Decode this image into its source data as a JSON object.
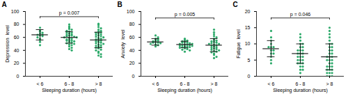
{
  "chart_data": [
    {
      "type": "scatter",
      "title": "A",
      "x_label": "Sleeping duration (hours)",
      "y_label": "Depression  level",
      "categories": [
        "< 6",
        "6 - 8",
        "> 8"
      ],
      "color": "#2eaa6b",
      "ylim": [
        0,
        100
      ],
      "yticks": [
        0,
        20,
        40,
        60,
        80,
        100
      ],
      "values": [
        [
          75,
          71,
          69,
          67,
          66,
          64,
          64,
          63,
          62,
          60,
          58,
          56,
          53,
          48
        ],
        [
          80,
          77,
          75,
          73,
          72,
          70,
          69,
          68,
          67,
          66,
          65,
          64,
          63,
          63,
          62,
          61,
          60,
          60,
          59,
          58,
          57,
          56,
          55,
          55,
          54,
          53,
          52,
          51,
          50,
          49,
          48,
          46,
          44,
          42,
          40
        ],
        [
          81,
          79,
          76,
          74,
          72,
          70,
          69,
          68,
          67,
          66,
          65,
          64,
          63,
          62,
          61,
          60,
          59,
          58,
          57,
          56,
          55,
          54,
          53,
          52,
          51,
          50,
          49,
          48,
          47,
          46,
          45,
          44,
          43,
          41,
          40,
          38,
          36,
          34,
          32,
          30
        ]
      ],
      "mean": [
        64,
        60,
        56
      ],
      "sd": [
        8,
        9,
        12
      ],
      "annotation": {
        "text": "p = 0.007",
        "from": 0,
        "to": 2,
        "y": 92
      }
    },
    {
      "type": "scatter",
      "title": "B",
      "x_label": "Sleeping duration (hours)",
      "y_label": "Anxiety  level",
      "categories": [
        "< 6",
        "6 - 8",
        "> 8"
      ],
      "color": "#2eaa6b",
      "ylim": [
        0,
        100
      ],
      "yticks": [
        0,
        20,
        40,
        60,
        80,
        100
      ],
      "values": [
        [
          63,
          60,
          58,
          57,
          56,
          55,
          54,
          53,
          52,
          52,
          51,
          50,
          49,
          48,
          46
        ],
        [
          58,
          56,
          55,
          54,
          53,
          52,
          52,
          51,
          50,
          50,
          49,
          49,
          48,
          48,
          47,
          47,
          46,
          46,
          45,
          45,
          44,
          43,
          42,
          41,
          40,
          38
        ],
        [
          72,
          68,
          65,
          62,
          60,
          58,
          56,
          55,
          54,
          53,
          52,
          51,
          50,
          50,
          49,
          48,
          47,
          46,
          45,
          44,
          43,
          42,
          41,
          40,
          39,
          38,
          37,
          35,
          33,
          30,
          28
        ]
      ],
      "mean": [
        53,
        49,
        48
      ],
      "sd": [
        5,
        5,
        10
      ],
      "annotation": {
        "text": "p = 0.005",
        "from": 0,
        "to": 2,
        "y": 90
      }
    },
    {
      "type": "scatter",
      "title": "C",
      "x_label": "Sleeping duration (hours)",
      "y_label": "Fatigue  level",
      "categories": [
        "< 6",
        "6 - 8",
        "> 8"
      ],
      "color": "#2eaa6b",
      "ylim": [
        0,
        20
      ],
      "yticks": [
        0,
        5,
        10,
        15,
        20
      ],
      "values": [
        [
          14,
          12,
          11,
          10,
          9,
          9,
          9,
          8,
          8,
          7,
          7,
          6,
          5,
          4
        ],
        [
          13,
          12,
          11,
          10,
          10,
          9,
          9,
          8,
          8,
          8,
          7,
          7,
          7,
          6,
          6,
          6,
          5,
          5,
          5,
          4,
          4,
          4,
          3,
          3,
          2,
          2,
          1
        ],
        [
          15,
          14,
          13,
          12,
          11,
          10,
          10,
          9,
          9,
          8,
          8,
          7,
          7,
          6,
          6,
          6,
          5,
          5,
          5,
          4,
          4,
          3,
          3,
          3,
          2,
          2,
          2,
          1,
          1,
          1,
          0,
          0,
          0
        ]
      ],
      "mean": [
        8.5,
        7,
        6
      ],
      "sd": [
        2.5,
        3,
        4
      ],
      "annotation": {
        "text": "p = 0.046",
        "from": 0,
        "to": 2,
        "y": 18
      }
    }
  ]
}
